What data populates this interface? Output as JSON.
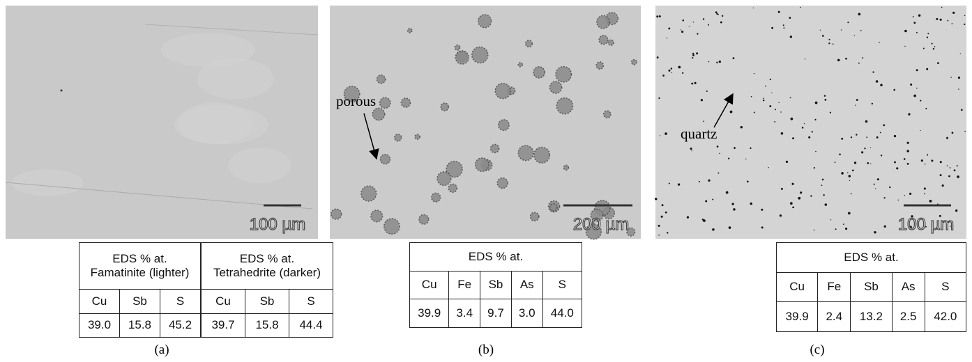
{
  "panels": [
    {
      "scale_bar": "100 µm",
      "annotation": null,
      "caption": "(a)",
      "tables": [
        {
          "header": [
            "EDS % at.",
            "Famatinite (lighter)"
          ],
          "columns": [
            "Cu",
            "Sb",
            "S"
          ],
          "values": [
            "39.0",
            "15.8",
            "45.2"
          ]
        },
        {
          "header": [
            "EDS % at.",
            "Tetrahedrite (darker)"
          ],
          "columns": [
            "Cu",
            "Sb",
            "S"
          ],
          "values": [
            "39.7",
            "15.8",
            "44.4"
          ]
        }
      ]
    },
    {
      "scale_bar": "200 µm",
      "annotation": "porous",
      "caption": "(b)",
      "tables": [
        {
          "header": [
            "EDS % at."
          ],
          "columns": [
            "Cu",
            "Fe",
            "Sb",
            "As",
            "S"
          ],
          "values": [
            "39.9",
            "3.4",
            "9.7",
            "3.0",
            "44.0"
          ]
        }
      ]
    },
    {
      "scale_bar": "100 µm",
      "annotation": "quartz",
      "caption": "(c)",
      "tables": [
        {
          "header": [
            "EDS % at."
          ],
          "columns": [
            "Cu",
            "Fe",
            "Sb",
            "As",
            "S"
          ],
          "values": [
            "39.9",
            "2.4",
            "13.2",
            "2.5",
            "42.0"
          ]
        }
      ]
    }
  ]
}
